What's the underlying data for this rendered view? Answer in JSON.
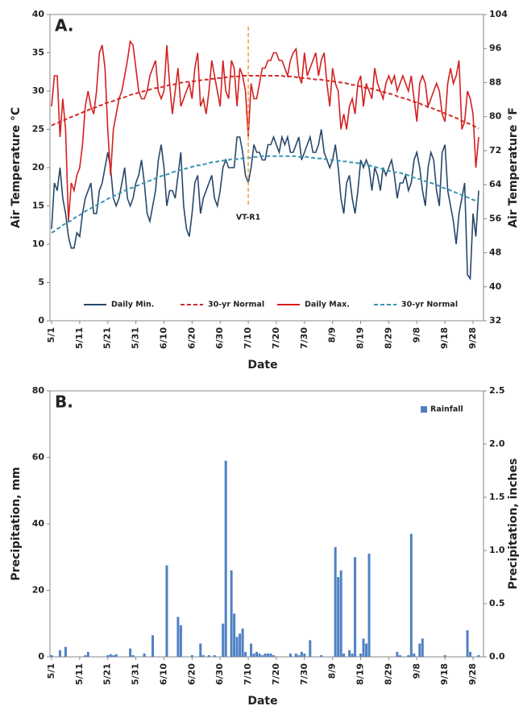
{
  "chart_data": [
    {
      "type": "line",
      "panel_label": "A.",
      "x_label": "Date",
      "y_label": "Air Temperature °C",
      "y2_label": "Air Temperature °F",
      "legend": "lower center",
      "categories": [
        "5/1",
        null,
        null,
        null,
        null,
        null,
        null,
        null,
        null,
        null,
        "5/11",
        null,
        null,
        null,
        null,
        null,
        null,
        null,
        null,
        null,
        "5/21",
        null,
        null,
        null,
        null,
        null,
        null,
        null,
        null,
        null,
        "5/31",
        null,
        null,
        null,
        null,
        null,
        null,
        null,
        null,
        null,
        "6/10",
        null,
        null,
        null,
        null,
        null,
        null,
        null,
        null,
        null,
        "6/20",
        null,
        null,
        null,
        null,
        null,
        null,
        null,
        null,
        null,
        "6/30",
        null,
        null,
        null,
        null,
        null,
        null,
        null,
        null,
        null,
        "7/10",
        null,
        null,
        null,
        null,
        null,
        null,
        null,
        null,
        null,
        "7/20",
        null,
        null,
        null,
        null,
        null,
        null,
        null,
        null,
        null,
        "7/30",
        null,
        null,
        null,
        null,
        null,
        null,
        null,
        null,
        null,
        "8/9",
        null,
        null,
        null,
        null,
        null,
        null,
        null,
        null,
        null,
        "8/19",
        null,
        null,
        null,
        null,
        null,
        null,
        null,
        null,
        null,
        "8/29",
        null,
        null,
        null,
        null,
        null,
        null,
        null,
        null,
        null,
        "9/8",
        null,
        null,
        null,
        null,
        null,
        null,
        null,
        null,
        null,
        "9/18",
        null,
        null,
        null,
        null,
        null,
        null,
        null,
        null,
        null,
        "9/28",
        null,
        null
      ],
      "ylim": [
        0,
        40
      ],
      "yticks": [
        0,
        5,
        10,
        15,
        20,
        25,
        30,
        35,
        40
      ],
      "y2lim": [
        32,
        104
      ],
      "y2ticks": [
        32,
        40,
        48,
        56,
        64,
        72,
        80,
        88,
        96,
        104
      ],
      "annotations": [
        {
          "text": "VT-R1",
          "x": "7/10",
          "color": "#f0a040"
        }
      ],
      "series": [
        {
          "name": "Daily Min.",
          "color": "#27486b",
          "linestyle": "solid",
          "values": [
            12,
            18,
            17,
            20,
            16,
            14,
            11,
            9.5,
            9.5,
            11.5,
            11,
            14,
            16,
            17,
            18,
            14,
            14,
            17,
            18,
            20,
            22,
            20,
            16,
            15,
            16,
            18,
            20,
            16,
            15,
            16,
            18,
            19,
            21,
            18,
            14,
            13,
            15,
            17,
            21,
            23,
            20,
            15,
            17,
            17,
            16,
            19,
            22,
            15,
            12,
            11,
            14,
            18,
            19,
            14,
            16,
            17,
            18,
            19,
            16,
            15,
            17,
            20,
            21,
            20,
            20,
            20,
            24,
            24,
            22,
            19,
            18,
            20,
            23,
            22,
            22,
            21,
            21,
            23,
            23,
            24,
            23,
            22,
            24,
            23,
            24,
            22,
            22,
            23,
            24,
            21,
            22,
            23,
            24,
            22,
            22,
            23,
            25,
            22,
            21,
            20,
            21,
            23,
            20,
            16,
            14,
            18,
            19,
            16,
            14,
            17,
            21,
            20,
            21,
            20,
            17,
            20,
            19,
            17,
            20,
            19,
            20,
            21,
            19,
            16,
            18,
            18,
            19,
            17,
            18,
            21,
            22,
            20,
            17,
            15,
            20,
            22,
            21,
            17,
            15,
            22,
            23,
            17,
            15,
            13,
            10,
            14,
            16,
            18,
            6,
            5.5,
            14,
            11,
            17
          ]
        },
        {
          "name": "30-yr Normal",
          "color": "#d42a2a",
          "linestyle": "dashed",
          "values": [
            25.5,
            25.7,
            25.8,
            26.0,
            26.1,
            26.3,
            26.5,
            26.6,
            26.8,
            26.9,
            27.1,
            27.2,
            27.4,
            27.5,
            27.7,
            27.8,
            27.9,
            28.1,
            28.2,
            28.4,
            28.5,
            28.6,
            28.7,
            28.9,
            29.0,
            29.1,
            29.2,
            29.3,
            29.5,
            29.6,
            29.7,
            29.8,
            29.9,
            30.0,
            30.1,
            30.2,
            30.3,
            30.4,
            30.4,
            30.5,
            30.6,
            30.7,
            30.8,
            30.8,
            30.9,
            31.0,
            31.1,
            31.1,
            31.2,
            31.2,
            31.3,
            31.3,
            31.4,
            31.4,
            31.5,
            31.5,
            31.5,
            31.6,
            31.6,
            31.7,
            31.7,
            31.7,
            31.8,
            31.8,
            31.9,
            31.9,
            31.9,
            31.9,
            32.0,
            32.0,
            32.0,
            32.0,
            32.0,
            32.0,
            32.0,
            32.0,
            32.0,
            32.0,
            32.0,
            32.0,
            32.0,
            32.0,
            32.0,
            31.9,
            31.9,
            31.9,
            31.9,
            31.8,
            31.8,
            31.7,
            31.7,
            31.7,
            31.6,
            31.6,
            31.5,
            31.5,
            31.5,
            31.4,
            31.4,
            31.3,
            31.3,
            31.2,
            31.2,
            31.1,
            31.1,
            31.0,
            30.9,
            30.8,
            30.8,
            30.7,
            30.6,
            30.5,
            30.4,
            30.4,
            30.3,
            30.2,
            30.1,
            30.0,
            29.9,
            29.8,
            29.7,
            29.6,
            29.5,
            29.3,
            29.2,
            29.1,
            29.0,
            28.9,
            28.7,
            28.6,
            28.5,
            28.4,
            28.2,
            28.1,
            27.9,
            27.8,
            27.7,
            27.5,
            27.4,
            27.2,
            27.1,
            26.9,
            26.8,
            26.6,
            26.5,
            26.3,
            26.1,
            26.0,
            25.8,
            25.7,
            25.5,
            25.3,
            25.1
          ]
        },
        {
          "name": "Daily Max.",
          "color": "#d42020",
          "linestyle": "solid",
          "values": [
            28,
            32,
            32,
            24,
            29,
            25,
            13,
            18,
            17,
            19,
            20,
            23,
            28,
            30,
            28,
            27,
            30,
            35,
            36,
            33,
            25,
            19,
            25,
            27,
            29,
            30,
            32,
            34,
            36.5,
            36,
            33,
            30,
            29,
            29,
            30,
            32,
            33,
            34,
            30,
            29,
            30,
            36,
            31,
            27,
            30,
            33,
            28,
            29,
            30,
            31,
            29,
            33,
            35,
            28,
            29,
            27,
            30,
            34,
            32,
            30,
            28,
            34,
            30,
            29,
            34,
            33,
            28,
            33,
            32,
            30,
            24,
            31,
            29,
            29,
            31,
            33,
            33,
            34,
            34,
            35,
            35,
            34,
            34,
            33,
            32,
            34,
            35,
            35.5,
            32,
            31,
            35,
            32,
            33,
            34,
            35,
            32,
            34,
            35,
            31,
            28,
            33,
            31,
            30,
            25,
            27,
            25,
            28,
            29,
            27,
            31,
            32,
            28,
            31,
            30,
            29,
            33,
            31,
            30,
            29,
            31,
            32,
            31,
            32,
            30,
            31,
            32,
            31,
            30,
            32,
            29,
            26,
            31,
            32,
            31,
            28,
            29,
            30,
            31,
            30,
            27,
            26,
            31,
            33,
            31,
            32,
            34,
            25,
            26,
            30,
            29,
            27,
            20,
            24
          ]
        },
        {
          "name": "30-yr Normal",
          "color": "#3a93b0",
          "linestyle": "dashed",
          "values": [
            11.5,
            11.7,
            12.0,
            12.2,
            12.5,
            12.7,
            12.9,
            13.1,
            13.4,
            13.6,
            13.8,
            14.0,
            14.3,
            14.5,
            14.7,
            14.9,
            15.1,
            15.3,
            15.5,
            15.7,
            15.9,
            16.1,
            16.3,
            16.4,
            16.6,
            16.8,
            17.0,
            17.1,
            17.3,
            17.4,
            17.6,
            17.7,
            17.9,
            18.0,
            18.2,
            18.3,
            18.4,
            18.6,
            18.7,
            18.9,
            19.0,
            19.1,
            19.2,
            19.4,
            19.5,
            19.6,
            19.7,
            19.8,
            19.9,
            20.0,
            20.1,
            20.2,
            20.3,
            20.3,
            20.4,
            20.5,
            20.6,
            20.7,
            20.7,
            20.8,
            20.9,
            20.9,
            21.0,
            21.0,
            21.1,
            21.1,
            21.1,
            21.2,
            21.2,
            21.3,
            21.3,
            21.3,
            21.4,
            21.4,
            21.5,
            21.5,
            21.5,
            21.5,
            21.5,
            21.5,
            21.5,
            21.5,
            21.5,
            21.5,
            21.5,
            21.5,
            21.5,
            21.5,
            21.4,
            21.4,
            21.4,
            21.4,
            21.3,
            21.3,
            21.2,
            21.2,
            21.2,
            21.1,
            21.1,
            21.0,
            21.0,
            21.0,
            20.9,
            20.9,
            20.8,
            20.8,
            20.7,
            20.7,
            20.6,
            20.6,
            20.5,
            20.4,
            20.3,
            20.3,
            20.2,
            20.1,
            20.0,
            19.9,
            19.8,
            19.7,
            19.6,
            19.5,
            19.4,
            19.4,
            19.3,
            19.2,
            19.1,
            19.0,
            18.8,
            18.7,
            18.6,
            18.5,
            18.4,
            18.2,
            18.1,
            18.0,
            17.9,
            17.7,
            17.6,
            17.4,
            17.3,
            17.2,
            17.0,
            16.9,
            16.7,
            16.6,
            16.4,
            16.3,
            16.1,
            16.0,
            15.8,
            15.7,
            15.5
          ]
        }
      ]
    },
    {
      "type": "bar",
      "panel_label": "B.",
      "x_label": "Date",
      "y_label": "Precipitation, mm",
      "y2_label": "Precipitation, inches",
      "legend": "upper right",
      "categories": [
        "5/1",
        null,
        null,
        null,
        null,
        null,
        null,
        null,
        null,
        null,
        "5/11",
        null,
        null,
        null,
        null,
        null,
        null,
        null,
        null,
        null,
        "5/21",
        null,
        null,
        null,
        null,
        null,
        null,
        null,
        null,
        null,
        "5/31",
        null,
        null,
        null,
        null,
        null,
        null,
        null,
        null,
        null,
        "6/10",
        null,
        null,
        null,
        null,
        null,
        null,
        null,
        null,
        null,
        "6/20",
        null,
        null,
        null,
        null,
        null,
        null,
        null,
        null,
        null,
        "6/30",
        null,
        null,
        null,
        null,
        null,
        null,
        null,
        null,
        null,
        "7/10",
        null,
        null,
        null,
        null,
        null,
        null,
        null,
        null,
        null,
        "7/20",
        null,
        null,
        null,
        null,
        null,
        null,
        null,
        null,
        null,
        "7/30",
        null,
        null,
        null,
        null,
        null,
        null,
        null,
        null,
        null,
        "8/9",
        null,
        null,
        null,
        null,
        null,
        null,
        null,
        null,
        null,
        "8/19",
        null,
        null,
        null,
        null,
        null,
        null,
        null,
        null,
        null,
        "8/29",
        null,
        null,
        null,
        null,
        null,
        null,
        null,
        null,
        null,
        "9/8",
        null,
        null,
        null,
        null,
        null,
        null,
        null,
        null,
        null,
        "9/18",
        null,
        null,
        null,
        null,
        null,
        null,
        null,
        null,
        null,
        "9/28",
        null,
        null
      ],
      "ylim": [
        0,
        80
      ],
      "yticks": [
        0,
        20,
        40,
        60,
        80
      ],
      "y2lim": [
        0,
        2.5
      ],
      "y2ticks": [
        {
          "value": 0,
          "label": "0.0"
        },
        0.5,
        {
          "value": 1,
          "label": "1.0"
        },
        1.5,
        {
          "value": 2,
          "label": "2.0"
        },
        2.5
      ],
      "series": [
        {
          "name": "Rainfall",
          "color": "#4f81c4",
          "values": [
            0.5,
            0,
            0,
            2,
            0,
            3,
            0,
            0,
            0,
            0,
            0,
            0,
            0.5,
            1.5,
            0,
            0,
            0,
            0,
            0,
            0,
            0.5,
            0.8,
            0.5,
            0.8,
            0,
            0,
            0,
            0,
            2.5,
            0.5,
            0,
            0,
            0,
            1,
            0,
            0,
            6.5,
            0,
            0,
            0,
            0,
            27.5,
            0,
            0,
            0,
            12,
            9.5,
            0,
            0,
            0,
            0.5,
            0,
            0,
            4,
            0.5,
            0,
            0.5,
            0,
            0.5,
            0,
            0,
            10,
            59,
            0,
            26,
            13,
            6,
            7,
            8.5,
            1.5,
            0,
            4,
            1,
            1.5,
            1,
            0.5,
            1,
            1,
            1,
            0.5,
            0,
            0,
            0,
            0,
            0,
            1,
            0,
            1,
            0.5,
            1.5,
            1,
            0,
            5,
            0,
            0,
            0,
            0.5,
            0,
            0,
            0,
            0,
            33,
            24,
            26,
            1,
            0,
            2,
            1,
            30,
            0,
            1,
            5.5,
            4,
            31,
            0,
            0,
            0,
            0,
            0,
            0,
            0,
            0,
            0,
            1.5,
            0.5,
            0,
            0,
            0.5,
            37,
            1,
            0,
            4,
            5.5,
            0,
            0,
            0,
            0,
            0,
            0,
            0,
            0.5,
            0,
            0,
            0,
            0,
            0,
            0,
            0,
            8,
            1.5,
            0,
            0,
            0.5
          ]
        }
      ]
    }
  ]
}
